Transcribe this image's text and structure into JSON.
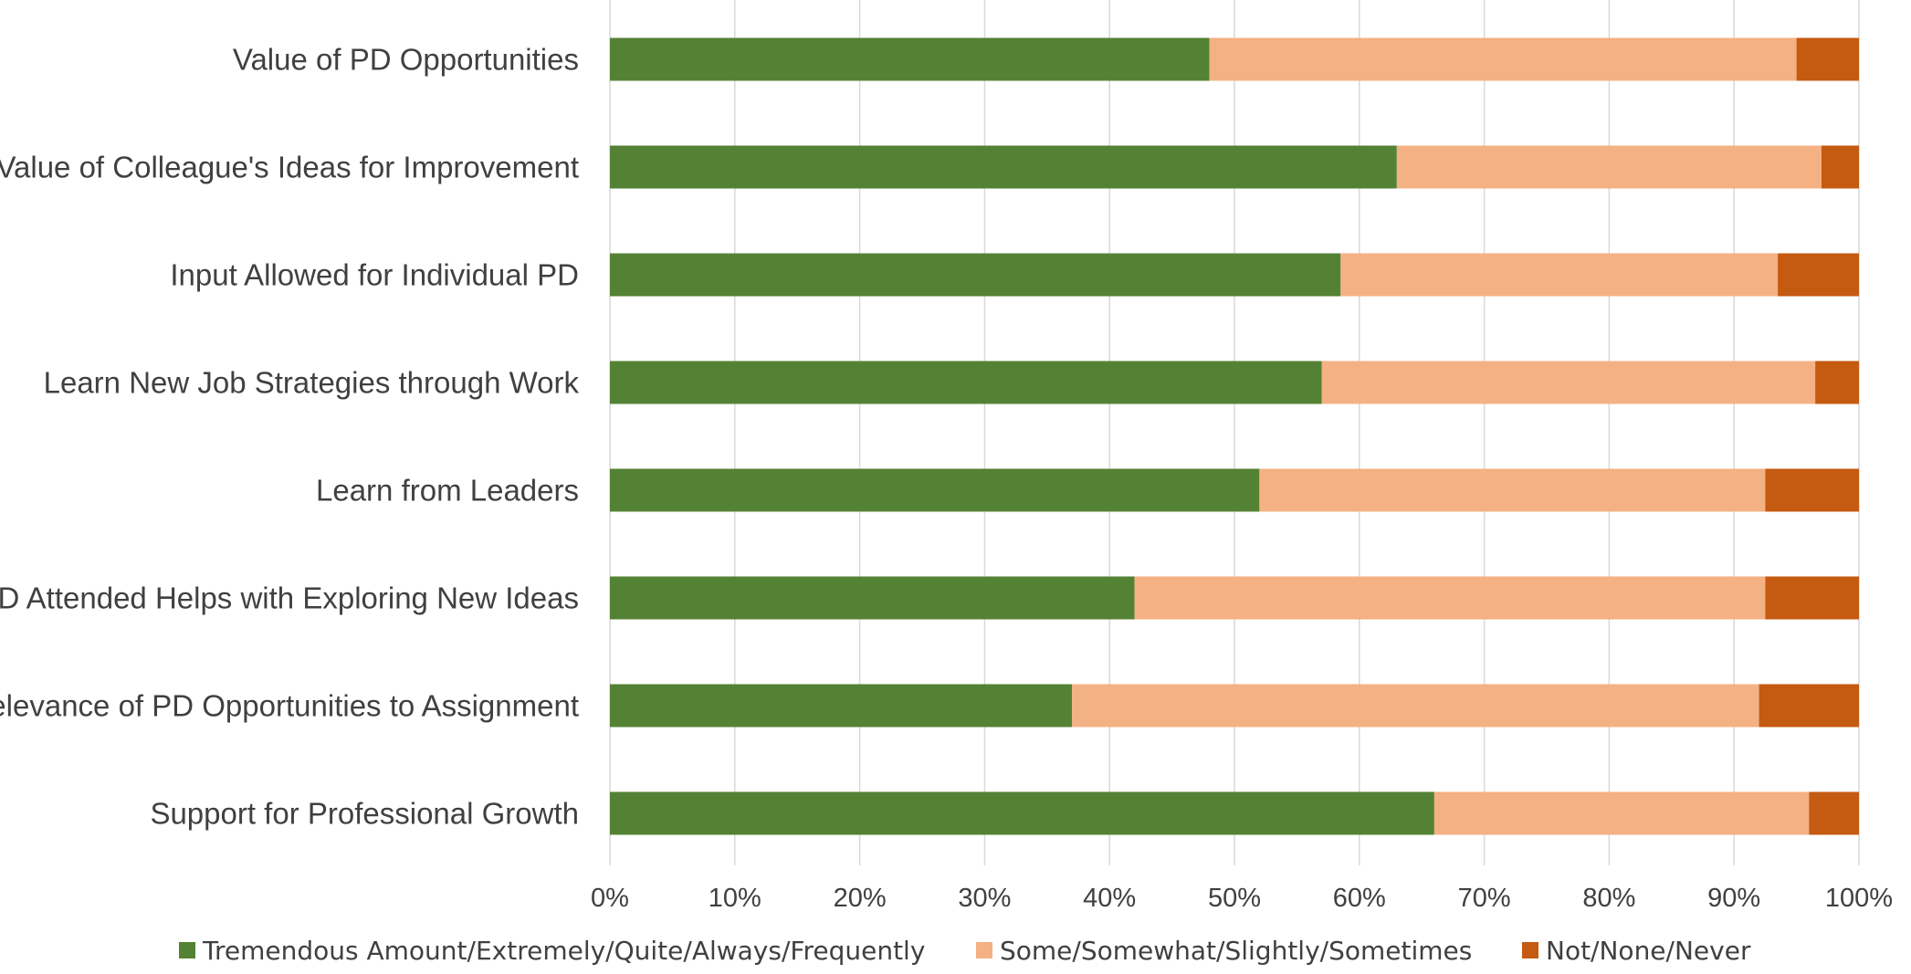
{
  "chart_data": {
    "type": "bar",
    "orientation": "horizontal",
    "stacked": "percent",
    "categories": [
      "Value of PD Opportunities",
      "Value of Colleague's Ideas for Improvement",
      "Input Allowed for Individual PD",
      "Learn New Job Strategies through Work",
      "Learn from Leaders",
      "PD Attended Helps with Exploring New Ideas",
      "Relevance of PD Opportunities to Assignment",
      "Support for Professional Growth"
    ],
    "series": [
      {
        "name": "Tremendous Amount/Extremely/Quite/Always/Frequently",
        "color": "#548235",
        "values": [
          48,
          63,
          58.5,
          57,
          52,
          42,
          37,
          66
        ]
      },
      {
        "name": "Some/Somewhat/Slightly/Sometimes",
        "color": "#f4b183",
        "values": [
          47,
          34,
          35,
          39.5,
          40.5,
          50.5,
          55,
          30
        ]
      },
      {
        "name": "Not/None/Never",
        "color": "#c55a11",
        "values": [
          5,
          3,
          6.5,
          3.5,
          7.5,
          7.5,
          8,
          4
        ]
      }
    ],
    "x_ticks": [
      "0%",
      "10%",
      "20%",
      "30%",
      "40%",
      "50%",
      "60%",
      "70%",
      "80%",
      "90%",
      "100%"
    ],
    "xlim": [
      0,
      100
    ],
    "grid": true,
    "legend_position": "bottom",
    "title": "",
    "xlabel": "",
    "ylabel": ""
  }
}
